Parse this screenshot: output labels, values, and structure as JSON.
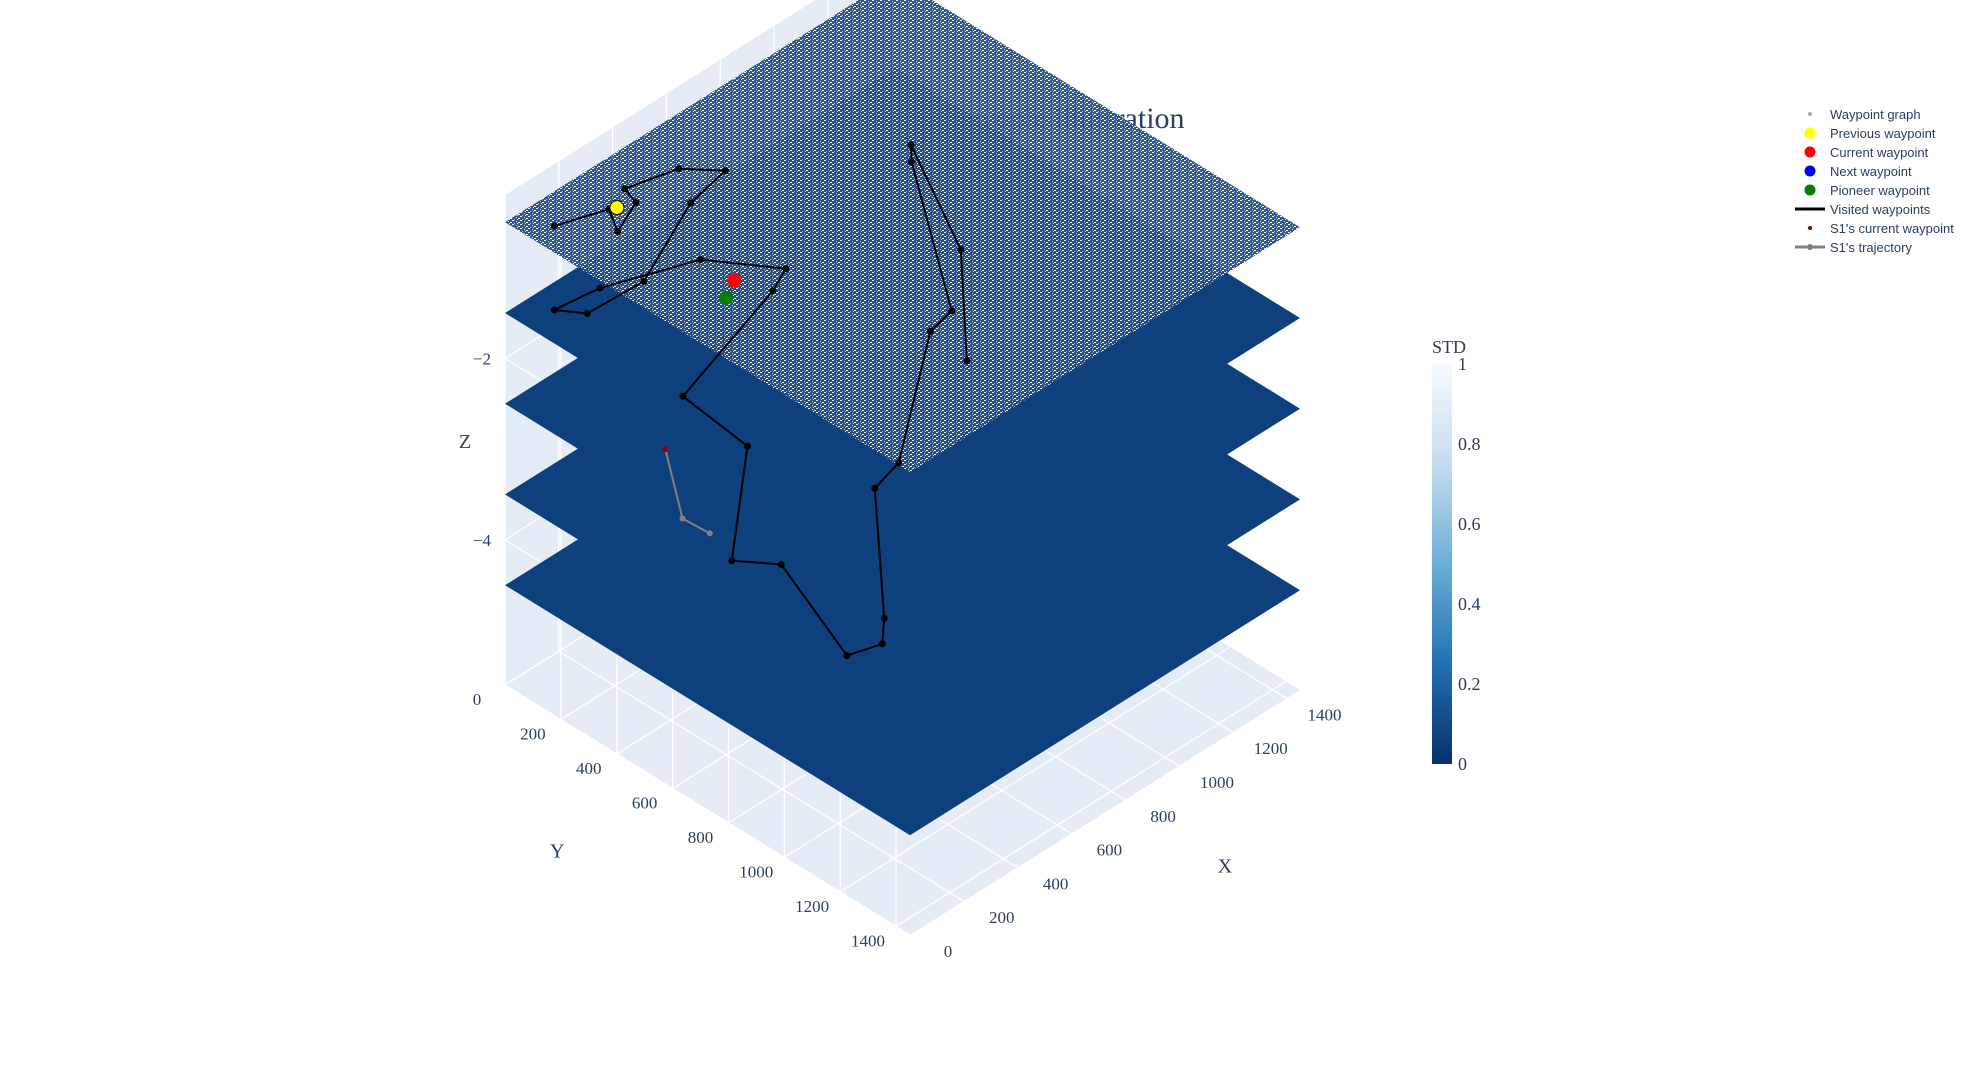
{
  "chart_data": {
    "type": "surface3d",
    "title": "Adaptive 3D myopic illustration",
    "axes": {
      "x": {
        "title": "X",
        "range": [
          0,
          1450
        ],
        "ticks": [
          0,
          200,
          400,
          600,
          800,
          1000,
          1200,
          1400
        ]
      },
      "y": {
        "title": "Y",
        "range": [
          0,
          1450
        ],
        "ticks": [
          0,
          200,
          400,
          600,
          800,
          1000,
          1200,
          1400
        ]
      },
      "z": {
        "title": "Z",
        "range": [
          -5.6,
          -0.2
        ],
        "ticks": [
          -2,
          -4
        ],
        "tick_labels": [
          "−2",
          "−4"
        ]
      }
    },
    "colorbar": {
      "title": "STD",
      "range": [
        0,
        1
      ],
      "ticks": [
        0,
        0.2,
        0.4,
        0.6,
        0.8,
        1
      ],
      "tick_labels": [
        "0",
        "0.2",
        "0.4",
        "0.6",
        "0.8",
        "1"
      ],
      "colors": [
        "#08306b",
        "#2171b5",
        "#6baed6",
        "#c6dbef",
        "#f7fbff"
      ]
    },
    "layers": [
      {
        "depth": -0.5,
        "std_level": 0.9,
        "noisy": true
      },
      {
        "depth": -1.5,
        "std_level": 0.06
      },
      {
        "depth": -2.5,
        "std_level": 0.06
      },
      {
        "depth": -3.5,
        "std_level": 0.06
      },
      {
        "depth": -4.5,
        "std_level": 0.06
      }
    ],
    "legend": {
      "placement": "top-right",
      "entries": [
        {
          "name": "Waypoint graph",
          "kind": "dot-small",
          "color": "#aaaaaa"
        },
        {
          "name": "Previous waypoint",
          "kind": "dot",
          "color": "#ffff00"
        },
        {
          "name": "Current waypoint",
          "kind": "dot",
          "color": "#ff0000"
        },
        {
          "name": "Next waypoint",
          "kind": "dot",
          "color": "#0000ff"
        },
        {
          "name": "Pioneer waypoint",
          "kind": "dot",
          "color": "#008000"
        },
        {
          "name": "Visited waypoints",
          "kind": "line",
          "color": "#000000"
        },
        {
          "name": "S1's current waypoint",
          "kind": "dot-small",
          "color": "#8b0000"
        },
        {
          "name": "S1's trajectory",
          "kind": "line-marker",
          "color": "#808080"
        }
      ]
    },
    "visited_waypoints": [
      [
        80,
        100,
        -0.5
      ],
      [
        230,
        150,
        -0.5
      ],
      [
        180,
        230,
        -0.5
      ],
      [
        300,
        180,
        -0.5
      ],
      [
        320,
        120,
        -0.5
      ],
      [
        480,
        160,
        -0.5
      ],
      [
        560,
        250,
        -0.5
      ],
      [
        400,
        280,
        -0.5
      ],
      [
        350,
        160,
        -1.5
      ],
      [
        150,
        150,
        -1.5
      ],
      [
        100,
        80,
        -1.5
      ],
      [
        250,
        100,
        -1.5
      ],
      [
        520,
        200,
        -1.5
      ],
      [
        650,
        380,
        -1.5
      ],
      [
        560,
        420,
        -1.5
      ],
      [
        350,
        300,
        -2.5
      ],
      [
        320,
        560,
        -2.5
      ],
      [
        220,
        600,
        -3.5
      ],
      [
        300,
        700,
        -3.5
      ],
      [
        420,
        820,
        -4.5
      ],
      [
        520,
        850,
        -4.5
      ],
      [
        600,
        780,
        -4.5
      ],
      [
        700,
        650,
        -3.5
      ],
      [
        820,
        620,
        -3.5
      ],
      [
        1000,
        560,
        -2.5
      ],
      [
        1100,
        540,
        -2.5
      ],
      [
        1200,
        300,
        -1.5
      ],
      [
        1250,
        250,
        -1.5
      ],
      [
        1300,
        380,
        -2.5
      ],
      [
        1250,
        450,
        -3.5
      ]
    ],
    "previous_waypoint": [
      250,
      160,
      -0.5
    ],
    "current_waypoint": [
      520,
      320,
      -1.5
    ],
    "pioneer_waypoint": [
      480,
      330,
      -1.6
    ],
    "s1_trajectory": [
      [
        160,
        420,
        -2.5
      ],
      [
        120,
        520,
        -3.0
      ],
      [
        180,
        560,
        -3.2
      ]
    ],
    "s1_current_waypoint": [
      160,
      420,
      -2.5
    ]
  }
}
